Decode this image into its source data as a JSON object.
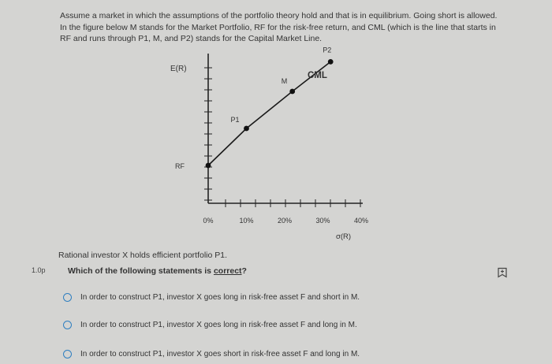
{
  "intro_text": "Assume a market in which the assumptions of the portfolio theory hold and that is in equilibrium. Going short is allowed. In the figure below M stands for the Market Portfolio, RF for the risk-free return, and CML (which is the line that starts in RF and runs through P1, M, and P2) stands for the Capital Market Line.",
  "chart_data": {
    "type": "line",
    "ylabel": "E(R)",
    "xlabel": "σ(R)",
    "line_label": "CML",
    "x_ticks": [
      "0%",
      "10%",
      "20%",
      "30%",
      "40%"
    ],
    "xlim": [
      0,
      40
    ],
    "y_axis_label_rf": "RF",
    "points": [
      {
        "label": "",
        "x": 0,
        "y": 0
      },
      {
        "label": "P1",
        "x": 10,
        "y": 1
      },
      {
        "label": "M",
        "x": 22,
        "y": 2
      },
      {
        "label": "P2",
        "x": 32,
        "y": 2.8
      }
    ],
    "grid": false
  },
  "question": {
    "context": "Rational investor X holds efficient portfolio P1.",
    "points": "1.0p",
    "prefix": "Which of the following statements is ",
    "emphasis": "correct",
    "suffix": "?"
  },
  "options": [
    {
      "label": "In order to construct P1, investor X goes long in risk-free asset F and short in M."
    },
    {
      "label": "In order to construct P1, investor X goes long in risk-free asset F and long in M."
    },
    {
      "label": "In order to construct P1, investor X goes short in risk-free asset F and long in M."
    }
  ],
  "colors": {
    "radio": "#2f7fc0",
    "background": "#d4d4d2"
  },
  "icons": {
    "flag": "flag-icon"
  }
}
